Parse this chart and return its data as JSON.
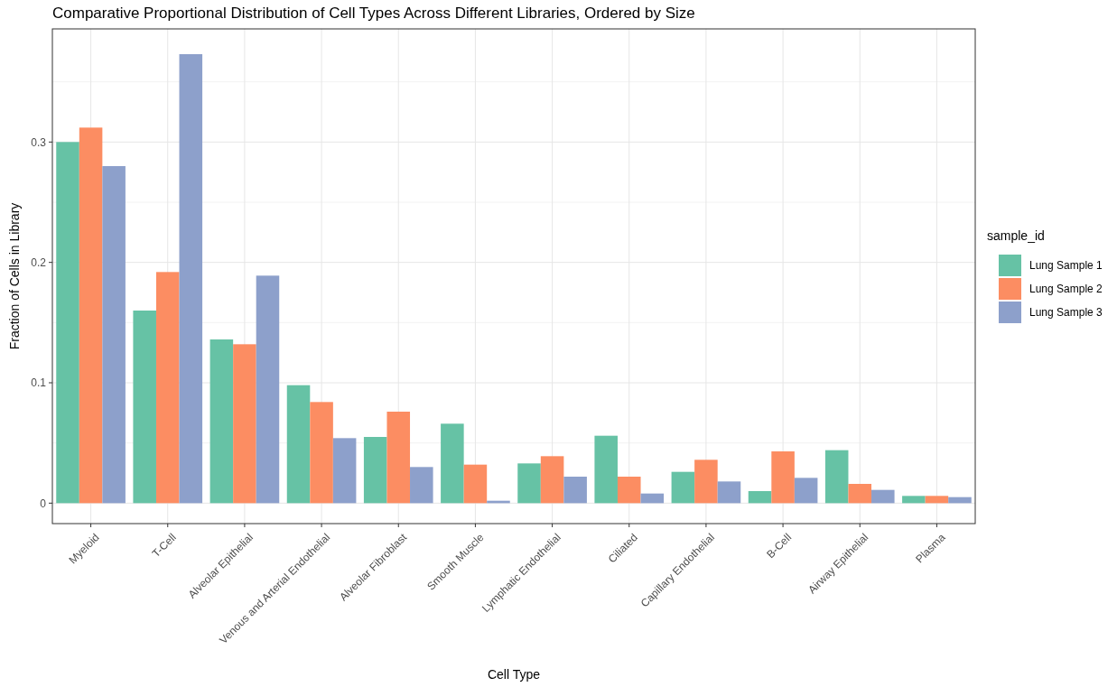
{
  "chart_data": {
    "type": "bar",
    "title": "Comparative Proportional Distribution of Cell Types Across Different Libraries, Ordered by Size",
    "xlabel": "Cell Type",
    "ylabel": "Fraction of Cells in Library",
    "legend_title": "sample_id",
    "categories": [
      "Myeloid",
      "T-Cell",
      "Alveolar Epithelial",
      "Venous and Arterial Endothelial",
      "Alveolar Fibroblast",
      "Smooth Muscle",
      "Lymphatic Endothelial",
      "Ciliated",
      "Capillary Endothelial",
      "B-Cell",
      "Airway Epithelial",
      "Plasma"
    ],
    "series": [
      {
        "name": "Lung Sample 1",
        "color": "#66c2a5",
        "values": [
          0.3,
          0.16,
          0.136,
          0.098,
          0.055,
          0.066,
          0.033,
          0.056,
          0.026,
          0.01,
          0.044,
          0.006
        ]
      },
      {
        "name": "Lung Sample 2",
        "color": "#fc8d62",
        "values": [
          0.312,
          0.192,
          0.132,
          0.084,
          0.076,
          0.032,
          0.039,
          0.022,
          0.036,
          0.043,
          0.016,
          0.006
        ]
      },
      {
        "name": "Lung Sample 3",
        "color": "#8da0cb",
        "values": [
          0.28,
          0.373,
          0.189,
          0.054,
          0.03,
          0.002,
          0.022,
          0.008,
          0.018,
          0.021,
          0.011,
          0.005
        ]
      }
    ],
    "ylim": [
      -0.017,
      0.394
    ],
    "yticks": [
      0,
      0.1,
      0.2,
      0.3
    ],
    "grid": true,
    "legend": "right"
  }
}
